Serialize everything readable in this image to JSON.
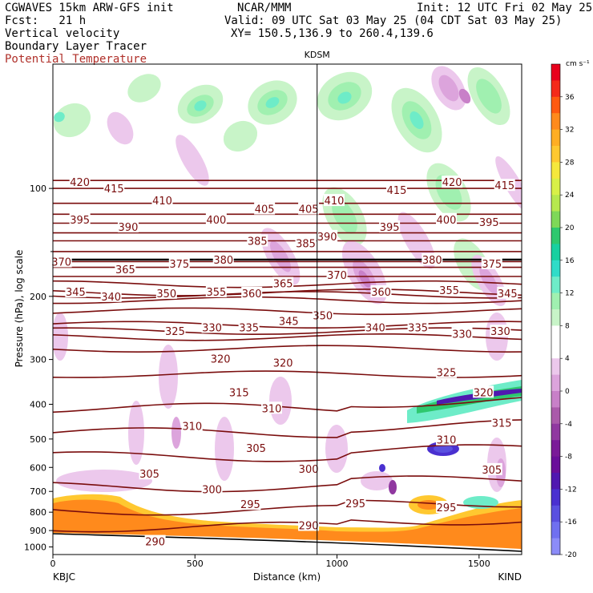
{
  "header": {
    "model": "CGWAVES 15km ARW-GFS init",
    "org": "NCAR/MMM",
    "init": "Init: 12 UTC Fri 02 May 25",
    "fcst": "Fcst:   21 h",
    "valid": "Valid: 09 UTC Sat 03 May 25 (04 CDT Sat 03 May 25)",
    "xy": "XY= 150.5,136.9 to 260.4,139.6",
    "field1": "Vertical velocity",
    "field2": "Boundary Layer Tracer",
    "field3": "Potential Temperature",
    "field3_color": "#b0302a"
  },
  "chart_data": {
    "type": "cross-section",
    "xlabel": "Distance (km)",
    "ylabel": "Pressure (hPa), log scale",
    "xlim": [
      0,
      1650
    ],
    "ylim": [
      1050,
      45
    ],
    "x_ticks": [
      "0",
      "500",
      "1000",
      "1500"
    ],
    "x_tick_values": [
      0,
      500,
      1000,
      1500
    ],
    "y_ticks": [
      "100",
      "200",
      "300",
      "400",
      "500",
      "600",
      "700",
      "800",
      "900",
      "1000"
    ],
    "y_tick_values": [
      100,
      200,
      300,
      400,
      500,
      600,
      700,
      800,
      900,
      1000
    ],
    "station_left": "KBJC",
    "station_right": "KIND",
    "station_mid": "KDSM",
    "station_mid_km": 930,
    "colorbar": {
      "unit": "cm s⁻¹",
      "labels": [
        "36",
        "32",
        "28",
        "24",
        "20",
        "16",
        "12",
        "8",
        "4",
        "0",
        "-4",
        "-8",
        "-12",
        "-16",
        "-20"
      ],
      "colors": [
        "#e8001c",
        "#f42a1a",
        "#ff5a10",
        "#ff8a1c",
        "#ffae24",
        "#ffc830",
        "#f5e83c",
        "#d8f048",
        "#b6e84e",
        "#7ed858",
        "#2ec86e",
        "#18d0a0",
        "#30dcc8",
        "#6eecc8",
        "#a0f0b0",
        "#c8f4c8",
        "#ffffff",
        "#ffffff",
        "#ecc8ec",
        "#dca4dc",
        "#c880c8",
        "#aa5aaa",
        "#9038a0",
        "#7a1a98",
        "#6a0f9a",
        "#5018b0",
        "#4a30d0",
        "#5a50e0",
        "#7070f0",
        "#8c8cf8"
      ]
    },
    "theta_contours": [
      {
        "label": "420",
        "p": 95
      },
      {
        "label": "415",
        "p": 100
      },
      {
        "label": "410",
        "p": 110
      },
      {
        "label": "405",
        "p": 118
      },
      {
        "label": "400",
        "p": 125
      },
      {
        "label": "395",
        "p": 133
      },
      {
        "label": "390",
        "p": 140
      },
      {
        "label": "385",
        "p": 150
      },
      {
        "label": "380",
        "p": 160
      },
      {
        "label": "375",
        "p": 166
      },
      {
        "label": "370",
        "p": 176
      },
      {
        "label": "365",
        "p": 185
      },
      {
        "label": "360",
        "p": 195
      },
      {
        "label": "355",
        "p": 198
      },
      {
        "label": "350",
        "p": 205
      },
      {
        "label": "345",
        "p": 220
      },
      {
        "label": "340",
        "p": 240
      },
      {
        "label": "335",
        "p": 250
      },
      {
        "label": "330",
        "p": 260
      },
      {
        "label": "325",
        "p": 280
      },
      {
        "label": "320",
        "p": 330
      },
      {
        "label": "315",
        "p": 410
      },
      {
        "label": "310",
        "p": 480
      },
      {
        "label": "305",
        "p": 560
      },
      {
        "label": "300",
        "p": 680
      },
      {
        "label": "295",
        "p": 790
      },
      {
        "label": "290",
        "p": 880
      }
    ],
    "labels_drawn": [
      {
        "t": "420",
        "x": 95,
        "p": 96
      },
      {
        "t": "415",
        "x": 215,
        "p": 100
      },
      {
        "t": "410",
        "x": 385,
        "p": 108
      },
      {
        "t": "405",
        "x": 745,
        "p": 114
      },
      {
        "t": "405",
        "x": 900,
        "p": 114
      },
      {
        "t": "410",
        "x": 990,
        "p": 108
      },
      {
        "t": "415",
        "x": 1210,
        "p": 101
      },
      {
        "t": "420",
        "x": 1405,
        "p": 96
      },
      {
        "t": "415",
        "x": 1590,
        "p": 98
      },
      {
        "t": "395",
        "x": 95,
        "p": 122
      },
      {
        "t": "390",
        "x": 265,
        "p": 128
      },
      {
        "t": "400",
        "x": 575,
        "p": 122
      },
      {
        "t": "385",
        "x": 720,
        "p": 140
      },
      {
        "t": "385",
        "x": 890,
        "p": 142
      },
      {
        "t": "390",
        "x": 965,
        "p": 136
      },
      {
        "t": "395",
        "x": 1185,
        "p": 128
      },
      {
        "t": "400",
        "x": 1385,
        "p": 122
      },
      {
        "t": "395",
        "x": 1535,
        "p": 124
      },
      {
        "t": "370",
        "x": 30,
        "p": 160
      },
      {
        "t": "365",
        "x": 255,
        "p": 168
      },
      {
        "t": "375",
        "x": 445,
        "p": 162
      },
      {
        "t": "380",
        "x": 600,
        "p": 158
      },
      {
        "t": "370",
        "x": 1000,
        "p": 174
      },
      {
        "t": "380",
        "x": 1335,
        "p": 158
      },
      {
        "t": "375",
        "x": 1545,
        "p": 162
      },
      {
        "t": "345",
        "x": 80,
        "p": 194
      },
      {
        "t": "340",
        "x": 205,
        "p": 200
      },
      {
        "t": "350",
        "x": 400,
        "p": 196
      },
      {
        "t": "355",
        "x": 575,
        "p": 194
      },
      {
        "t": "360",
        "x": 700,
        "p": 196
      },
      {
        "t": "365",
        "x": 810,
        "p": 184
      },
      {
        "t": "360",
        "x": 1155,
        "p": 194
      },
      {
        "t": "355",
        "x": 1395,
        "p": 192
      },
      {
        "t": "345",
        "x": 1600,
        "p": 196
      },
      {
        "t": "325",
        "x": 430,
        "p": 250
      },
      {
        "t": "330",
        "x": 560,
        "p": 244
      },
      {
        "t": "335",
        "x": 690,
        "p": 244
      },
      {
        "t": "345",
        "x": 830,
        "p": 234
      },
      {
        "t": "350",
        "x": 950,
        "p": 226
      },
      {
        "t": "340",
        "x": 1135,
        "p": 244
      },
      {
        "t": "335",
        "x": 1285,
        "p": 244
      },
      {
        "t": "330",
        "x": 1440,
        "p": 254
      },
      {
        "t": "330",
        "x": 1575,
        "p": 250
      },
      {
        "t": "320",
        "x": 590,
        "p": 298
      },
      {
        "t": "320",
        "x": 810,
        "p": 306
      },
      {
        "t": "325",
        "x": 1385,
        "p": 326
      },
      {
        "t": "320",
        "x": 1515,
        "p": 370
      },
      {
        "t": "315",
        "x": 655,
        "p": 370
      },
      {
        "t": "310",
        "x": 770,
        "p": 410
      },
      {
        "t": "315",
        "x": 1580,
        "p": 450
      },
      {
        "t": "310",
        "x": 490,
        "p": 460
      },
      {
        "t": "310",
        "x": 1385,
        "p": 502
      },
      {
        "t": "305",
        "x": 715,
        "p": 530
      },
      {
        "t": "305",
        "x": 340,
        "p": 625
      },
      {
        "t": "300",
        "x": 900,
        "p": 605
      },
      {
        "t": "305",
        "x": 1545,
        "p": 608
      },
      {
        "t": "300",
        "x": 560,
        "p": 690
      },
      {
        "t": "295",
        "x": 695,
        "p": 760
      },
      {
        "t": "295",
        "x": 1065,
        "p": 755
      },
      {
        "t": "295",
        "x": 1385,
        "p": 775
      },
      {
        "t": "290",
        "x": 900,
        "p": 870
      },
      {
        "t": "290",
        "x": 360,
        "p": 965
      }
    ]
  }
}
